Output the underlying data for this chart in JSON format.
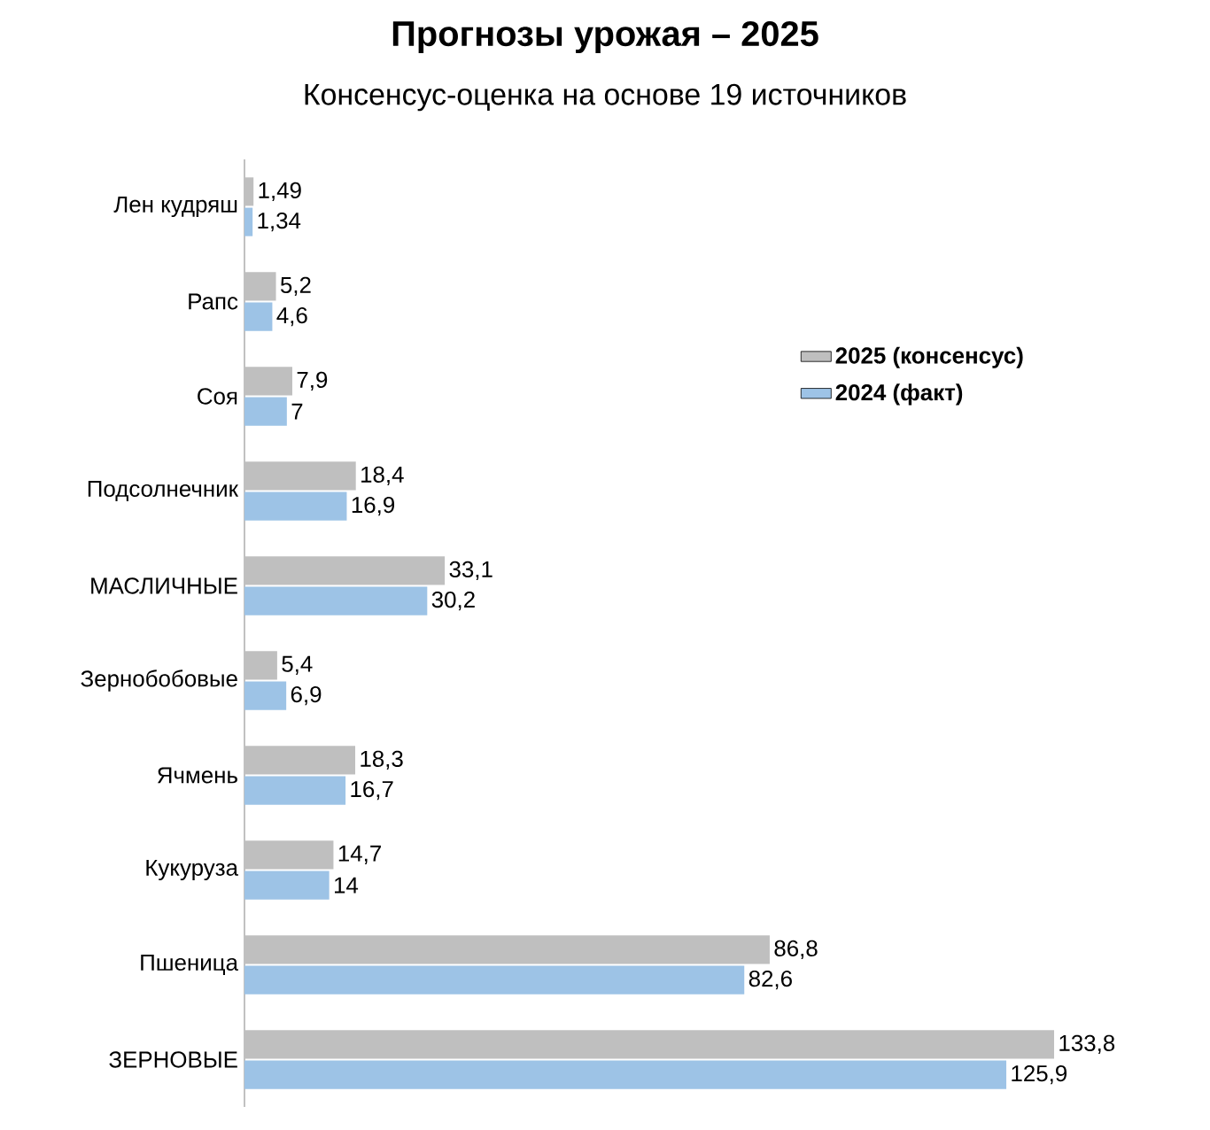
{
  "chart_data": {
    "type": "bar",
    "orientation": "horizontal",
    "title": "Прогнозы урожая – 2025",
    "subtitle": "Консенсус-оценка на основе 19 источников",
    "categories": [
      "Лен кудряш",
      "Рапс",
      "Соя",
      "Подсолнечник",
      "МАСЛИЧНЫЕ",
      "Зернобобовые",
      "Ячмень",
      "Кукуруза",
      "Пшеница",
      "ЗЕРНОВЫЕ"
    ],
    "series": [
      {
        "name": "2025 (консенсус)",
        "color": "#bfbfbf",
        "values": [
          1.49,
          5.2,
          7.9,
          18.4,
          33.1,
          5.4,
          18.3,
          14.7,
          86.8,
          133.8
        ],
        "value_labels": [
          "1,49",
          "5,2",
          "7,9",
          "18,4",
          "33,1",
          "5,4",
          "18,3",
          "14,7",
          "86,8",
          "133,8"
        ]
      },
      {
        "name": "2024 (факт)",
        "color": "#9dc3e6",
        "values": [
          1.34,
          4.6,
          7,
          16.9,
          30.2,
          6.9,
          16.7,
          14,
          82.6,
          125.9
        ],
        "value_labels": [
          "1,34",
          "4,6",
          "7",
          "16,9",
          "30,2",
          "6,9",
          "16,7",
          "14",
          "82,6",
          "125,9"
        ]
      }
    ],
    "tick_labels": "y",
    "legend": "right"
  }
}
